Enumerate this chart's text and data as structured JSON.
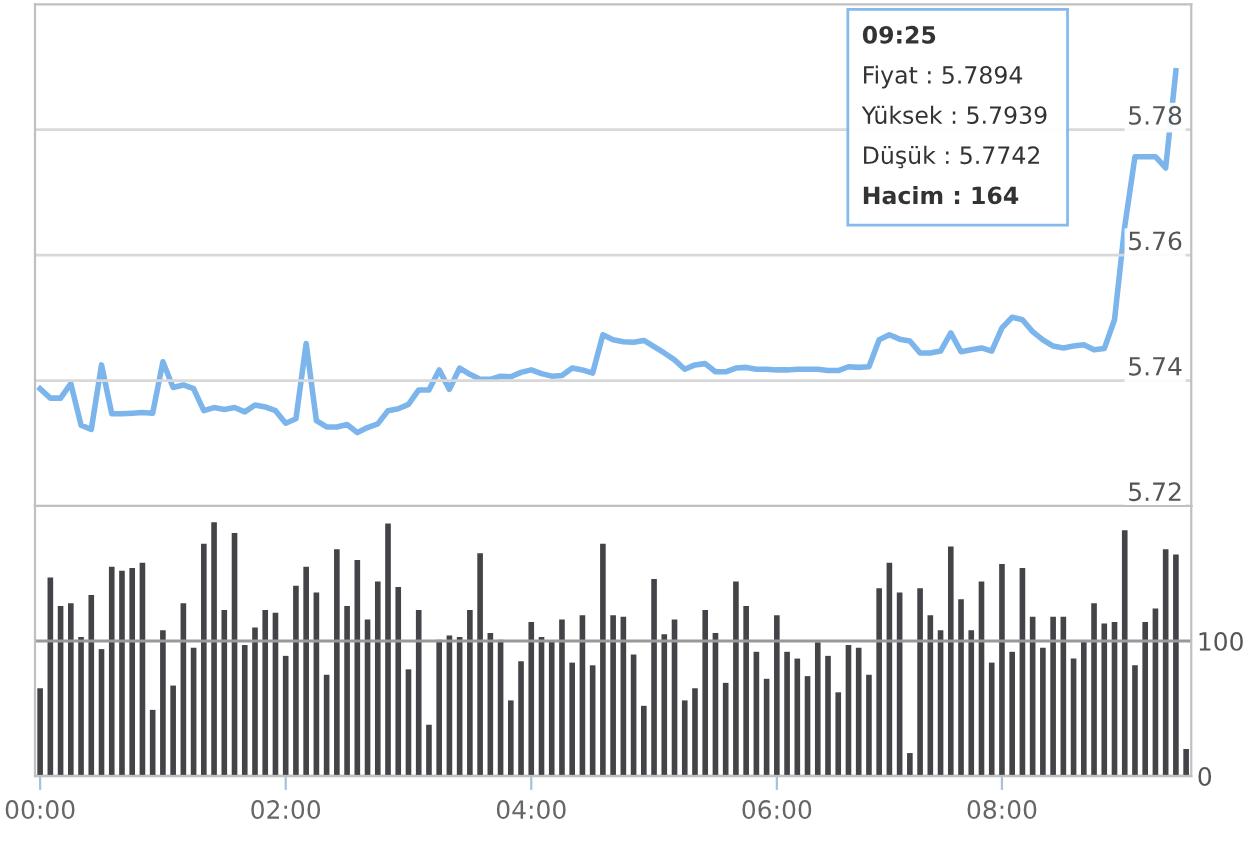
{
  "chart_data": [
    {
      "type": "line",
      "categories": [
        null,
        null,
        null,
        null,
        null,
        null,
        null,
        null,
        null,
        null,
        null,
        null,
        null,
        null,
        null,
        null,
        null,
        null,
        null,
        null,
        null,
        null,
        null,
        null,
        null,
        null,
        null,
        null,
        null,
        null,
        null,
        null,
        null,
        null,
        null,
        null,
        null,
        null,
        null,
        null,
        null,
        null,
        null,
        null,
        null,
        null,
        null,
        null,
        null,
        null,
        null,
        null,
        null,
        null,
        null,
        null,
        null,
        null,
        null,
        null,
        null,
        null,
        null,
        null,
        null,
        null,
        null,
        null,
        null,
        null,
        null,
        null,
        null,
        null,
        null,
        null,
        null,
        null,
        null,
        null,
        null,
        null,
        null,
        null,
        null,
        null,
        null,
        null,
        null,
        null,
        null,
        null,
        null,
        null,
        null,
        null,
        null,
        null,
        null,
        null,
        null,
        null,
        null,
        null,
        null,
        null,
        null,
        null,
        null,
        null,
        null,
        null,
        null
      ],
      "series": [
        {
          "color": "#7cb5ec",
          "values": [
            5.7387,
            5.7372,
            5.7372,
            5.7395,
            5.7329,
            5.7322,
            5.7425,
            5.7347,
            5.7347,
            5.7348,
            5.7349,
            5.7348,
            5.743,
            5.7389,
            5.7393,
            5.7387,
            5.7352,
            5.7357,
            5.7354,
            5.7357,
            5.735,
            5.7361,
            5.7358,
            5.7352,
            5.7332,
            5.7339,
            5.7459,
            5.7336,
            5.7326,
            5.7326,
            5.733,
            5.7317,
            5.7325,
            5.7331,
            5.7352,
            5.7355,
            5.7362,
            5.7385,
            5.7385,
            5.7417,
            5.7386,
            5.742,
            5.741,
            5.7402,
            5.7402,
            5.7407,
            5.7406,
            5.7413,
            5.7417,
            5.7411,
            5.7407,
            5.7408,
            5.742,
            5.7417,
            5.7412,
            5.7473,
            5.7465,
            5.7462,
            5.7461,
            5.7464,
            5.7454,
            5.7444,
            5.7433,
            5.7418,
            5.7425,
            5.7427,
            5.7414,
            5.7414,
            5.742,
            5.7421,
            5.7418,
            5.7418,
            5.7417,
            5.7417,
            5.7418,
            5.7418,
            5.7418,
            5.7416,
            5.7416,
            5.7422,
            5.7421,
            5.7422,
            5.7465,
            5.7473,
            5.7466,
            5.7463,
            5.7444,
            5.7444,
            5.7447,
            5.7476,
            5.7446,
            5.7449,
            5.7452,
            5.7447,
            5.7484,
            5.7501,
            5.7497,
            5.7478,
            5.7465,
            5.7455,
            5.7452,
            5.7455,
            5.7457,
            5.7449,
            5.7451,
            5.7497,
            5.7646,
            5.7757,
            5.7757,
            5.7757,
            5.7739,
            5.7894,
            null
          ]
        }
      ],
      "ylim": [
        5.72,
        5.8
      ],
      "yticks": [
        5.72,
        5.74,
        5.76,
        5.78
      ],
      "grid": "y",
      "tick_labels": "y",
      "line_style": "solid",
      "annotations": [
        "09:25",
        "Fiyat : 5.7894",
        "Yüksek : 5.7939",
        "Düşük : 5.7742",
        "Hacim : 164"
      ]
    },
    {
      "type": "bar",
      "categories": [
        "00:00",
        null,
        null,
        null,
        null,
        null,
        null,
        null,
        null,
        null,
        null,
        null,
        null,
        null,
        null,
        null,
        null,
        null,
        null,
        null,
        null,
        null,
        null,
        null,
        "02:00",
        null,
        null,
        null,
        null,
        null,
        null,
        null,
        null,
        null,
        null,
        null,
        null,
        null,
        null,
        null,
        null,
        null,
        null,
        null,
        null,
        null,
        null,
        null,
        "04:00",
        null,
        null,
        null,
        null,
        null,
        null,
        null,
        null,
        null,
        null,
        null,
        null,
        null,
        null,
        null,
        null,
        null,
        null,
        null,
        null,
        null,
        null,
        null,
        "06:00",
        null,
        null,
        null,
        null,
        null,
        null,
        null,
        null,
        null,
        null,
        null,
        null,
        null,
        null,
        null,
        null,
        null,
        null,
        null,
        null,
        null,
        "08:00",
        null,
        null,
        null,
        null,
        null,
        null,
        null,
        null,
        null,
        null,
        null,
        null,
        null,
        null,
        null,
        null,
        null,
        null
      ],
      "series": [
        {
          "color": "#434348",
          "values": [
            65,
            147,
            126,
            128,
            103,
            134,
            94,
            155,
            152,
            154,
            158,
            49,
            108,
            67,
            128,
            95,
            172,
            188,
            123,
            180,
            97,
            110,
            123,
            121,
            89,
            141,
            155,
            136,
            75,
            168,
            126,
            160,
            116,
            144,
            187,
            140,
            79,
            123,
            38,
            101,
            104,
            103,
            123,
            165,
            106,
            101,
            56,
            85,
            114,
            103,
            100,
            116,
            84,
            119,
            82,
            172,
            119,
            118,
            90,
            52,
            146,
            105,
            116,
            56,
            65,
            123,
            106,
            69,
            144,
            126,
            92,
            72,
            119,
            92,
            87,
            74,
            99,
            89,
            62,
            97,
            95,
            75,
            139,
            158,
            136,
            17,
            139,
            119,
            108,
            170,
            131,
            108,
            144,
            84,
            157,
            92,
            154,
            118,
            95,
            118,
            118,
            87,
            100,
            128,
            113,
            114,
            182,
            82,
            114,
            124,
            168,
            164,
            20
          ]
        }
      ],
      "ylim": [
        0,
        200
      ],
      "yticks": [
        0,
        100
      ],
      "grid": "y"
    }
  ]
}
